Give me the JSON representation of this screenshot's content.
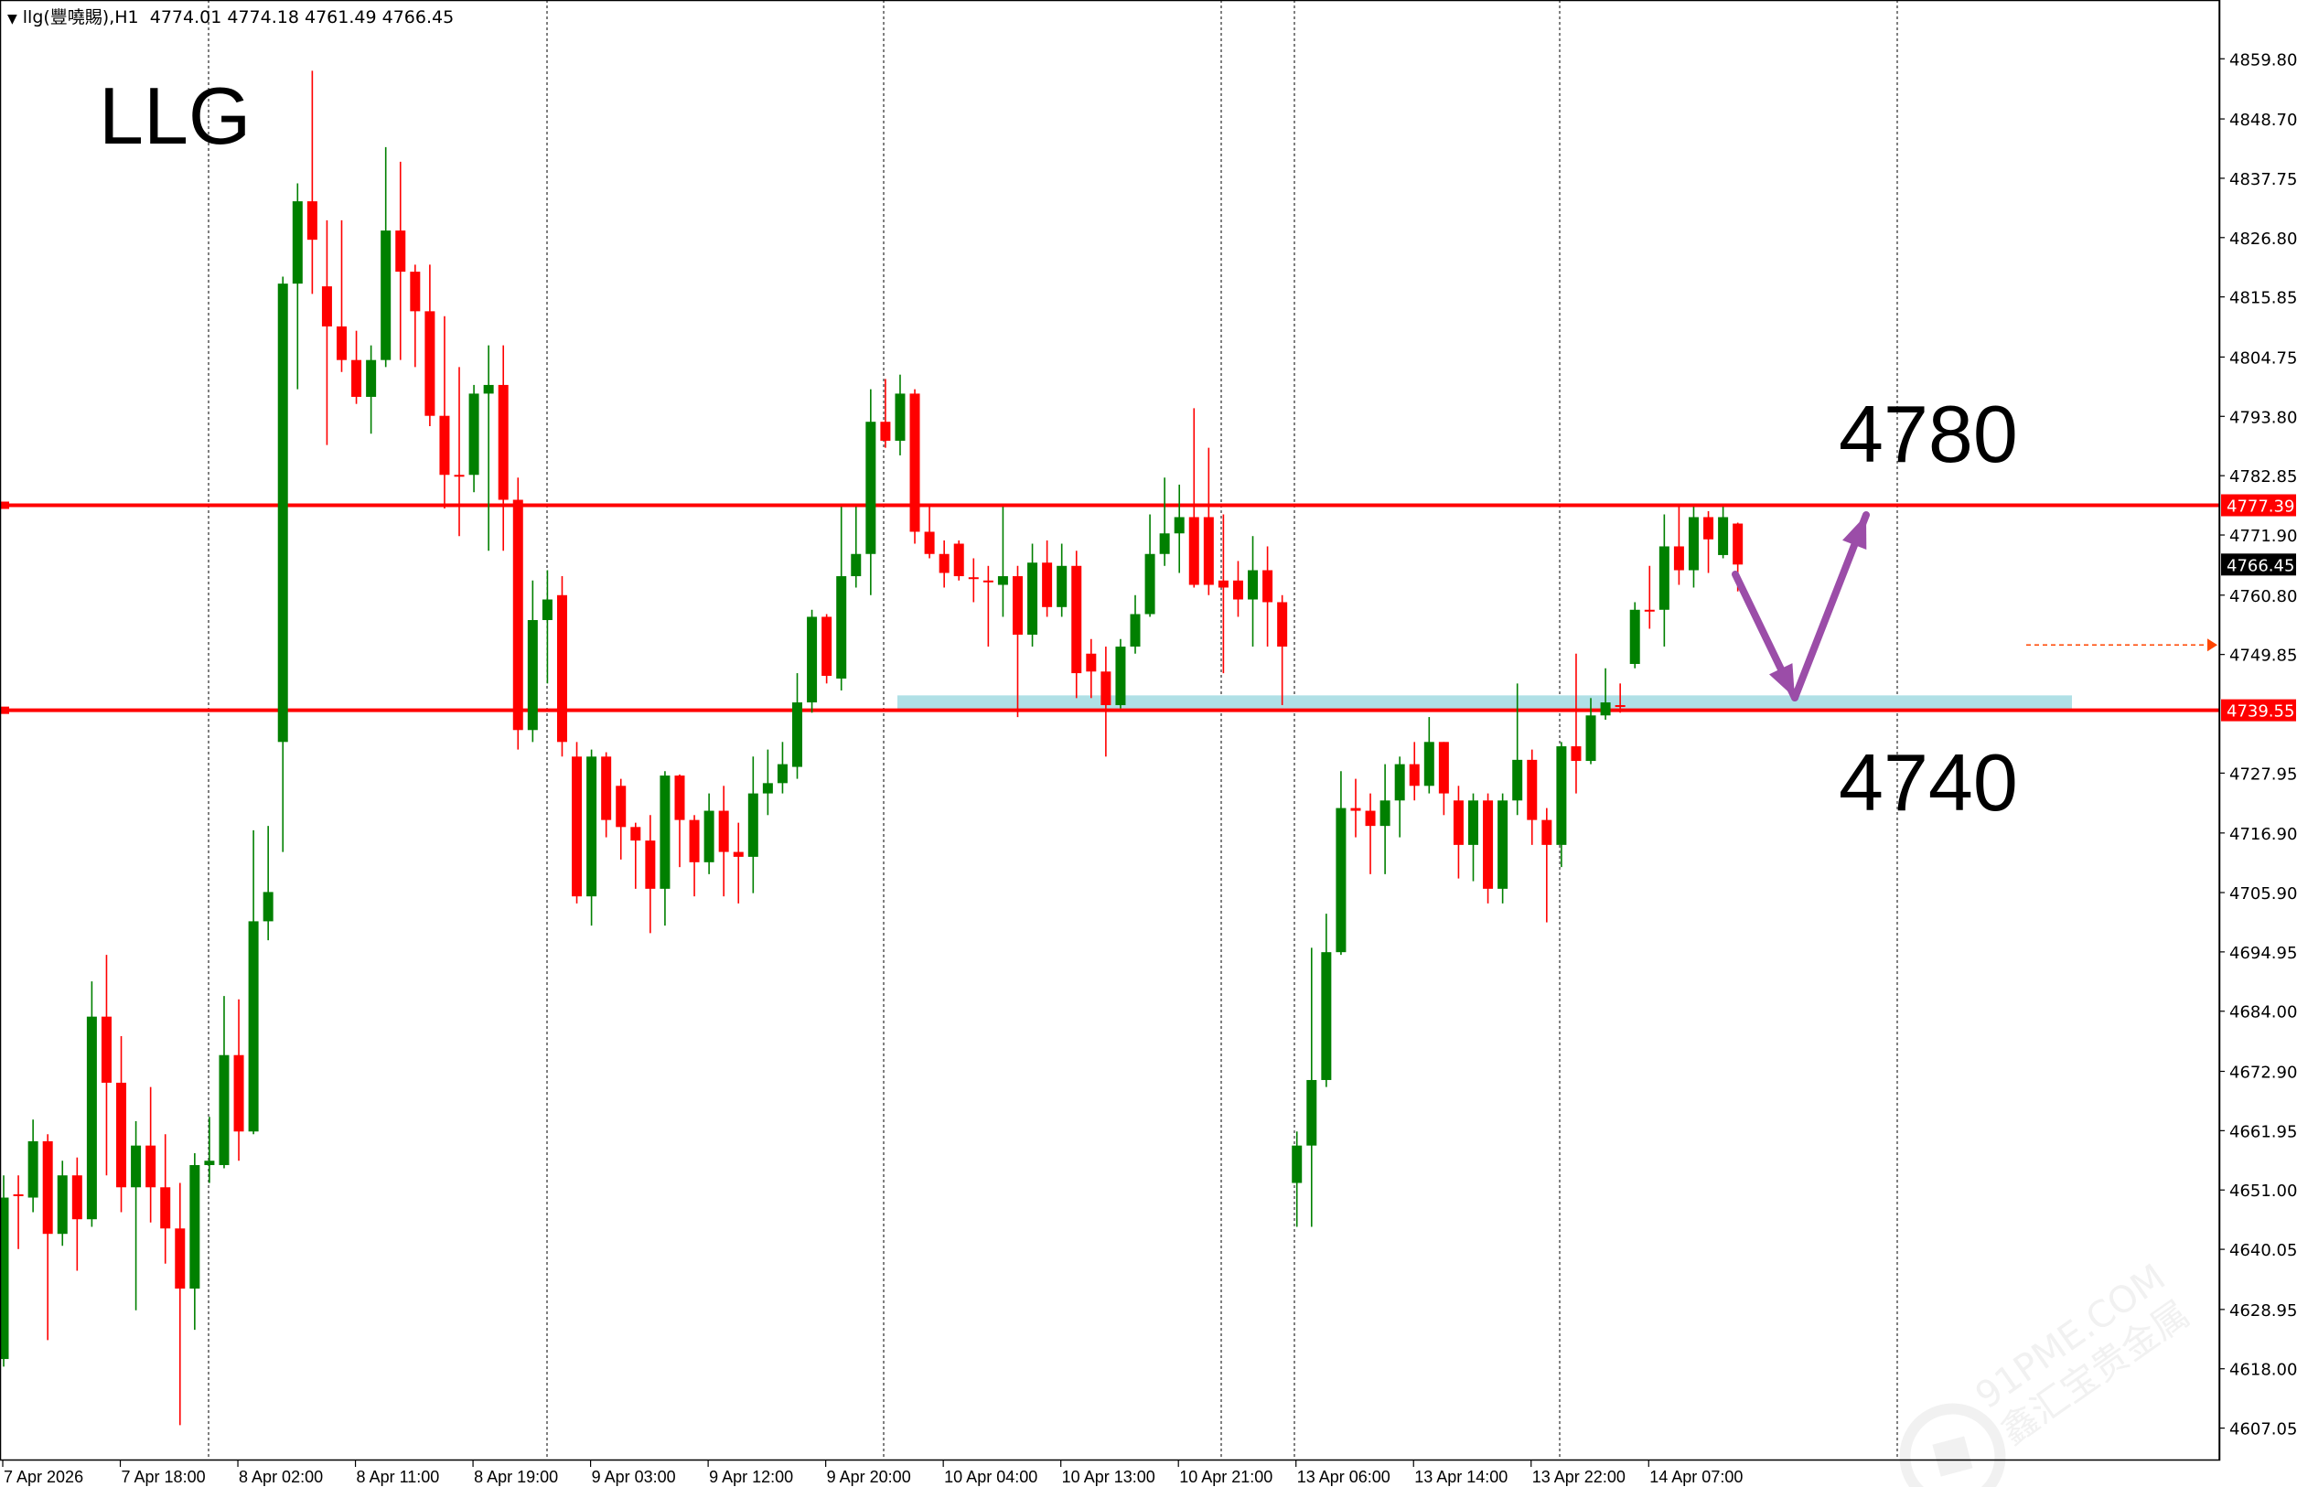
{
  "header": {
    "symbol": "llg(豐嘵賜),H1",
    "open": "4774.01",
    "high": "4774.18",
    "low": "4761.49",
    "close": "4766.45",
    "dropdown_icon": "triangle-down-icon"
  },
  "annotations": {
    "title": "LLG",
    "upper_target": "4780",
    "lower_target": "4740",
    "arrow_color": "#9b4da8",
    "zone_color": "#b0e0e6",
    "support_zone": [
      4739.55,
      4742.3
    ]
  },
  "watermark": "91PME.COM 鑫汇宝贵金属",
  "colors": {
    "bull": "#008000",
    "bear": "#ff0000",
    "level_line": "#ff0000",
    "grid": "#000000"
  },
  "chart_data": {
    "type": "candlestick",
    "timeframe": "H1",
    "ylim": [
      4602,
      4866
    ],
    "grid": "vertical day separators (dotted)",
    "y_ticks": [
      "4859.80",
      "4848.70",
      "4837.75",
      "4826.80",
      "4815.85",
      "4804.75",
      "4793.80",
      "4782.85",
      "4771.90",
      "4760.80",
      "4749.85",
      "4727.95",
      "4716.90",
      "4705.90",
      "4694.95",
      "4684.00",
      "4672.90",
      "4661.95",
      "4651.00",
      "4640.05",
      "4628.95",
      "4618.00",
      "4607.05"
    ],
    "x_labels": [
      "7 Apr 2026",
      "7 Apr 18:00",
      "8 Apr 02:00",
      "8 Apr 11:00",
      "8 Apr 19:00",
      "9 Apr 03:00",
      "9 Apr 12:00",
      "9 Apr 20:00",
      "10 Apr 04:00",
      "10 Apr 13:00",
      "10 Apr 21:00",
      "13 Apr 06:00",
      "13 Apr 14:00",
      "13 Apr 22:00",
      "14 Apr 07:00"
    ],
    "horizontal_levels": [
      {
        "price": "4777.39",
        "color": "#ff0000"
      },
      {
        "price": "4739.55",
        "color": "#ff0000"
      }
    ],
    "current_price": "4766.45",
    "alert_price": 4751.6,
    "ohlc": [
      [
        4619.8,
        4653.7,
        4618.4,
        4649.6
      ],
      [
        4650.2,
        4653.7,
        4640.1,
        4649.9
      ],
      [
        4649.6,
        4664.0,
        4646.9,
        4660.0
      ],
      [
        4660.0,
        4661.3,
        4623.3,
        4642.9
      ],
      [
        4642.9,
        4656.4,
        4640.7,
        4653.7
      ],
      [
        4653.7,
        4657.0,
        4636.1,
        4645.6
      ],
      [
        4645.6,
        4689.5,
        4644.2,
        4683.0
      ],
      [
        4683.0,
        4694.4,
        4653.7,
        4670.8
      ],
      [
        4670.8,
        4679.4,
        4646.9,
        4651.5
      ],
      [
        4651.5,
        4663.7,
        4628.8,
        4659.2
      ],
      [
        4659.2,
        4670.0,
        4645.0,
        4651.5
      ],
      [
        4651.5,
        4661.3,
        4637.4,
        4643.9
      ],
      [
        4643.9,
        4652.3,
        4607.6,
        4632.8
      ],
      [
        4632.8,
        4657.8,
        4625.2,
        4655.6
      ],
      [
        4655.6,
        4664.5,
        4652.3,
        4656.4
      ],
      [
        4655.6,
        4686.8,
        4655.0,
        4675.9
      ],
      [
        4675.9,
        4686.2,
        4656.4,
        4661.8
      ],
      [
        4661.8,
        4717.4,
        4661.3,
        4700.6
      ],
      [
        4700.6,
        4718.2,
        4697.1,
        4706.0
      ],
      [
        4733.7,
        4819.6,
        4713.4,
        4818.3
      ],
      [
        4818.3,
        4836.8,
        4798.8,
        4833.5
      ],
      [
        4833.5,
        4857.6,
        4816.4,
        4826.4
      ],
      [
        4817.8,
        4830.0,
        4788.5,
        4810.4
      ],
      [
        4810.4,
        4830.0,
        4802.0,
        4804.2
      ],
      [
        4804.2,
        4809.6,
        4796.1,
        4797.4
      ],
      [
        4797.4,
        4806.9,
        4790.6,
        4804.2
      ],
      [
        4804.2,
        4843.5,
        4802.9,
        4828.1
      ],
      [
        4828.1,
        4840.8,
        4804.2,
        4820.5
      ],
      [
        4820.5,
        4821.8,
        4802.9,
        4813.2
      ],
      [
        4813.2,
        4821.8,
        4792.0,
        4793.9
      ],
      [
        4793.9,
        4812.3,
        4776.8,
        4783.0
      ],
      [
        4783.0,
        4802.9,
        4771.7,
        4782.8
      ],
      [
        4783.0,
        4799.6,
        4779.8,
        4798.0
      ],
      [
        4798.0,
        4806.9,
        4769.0,
        4799.6
      ],
      [
        4799.6,
        4806.9,
        4769.0,
        4778.4
      ],
      [
        4778.4,
        4782.5,
        4732.3,
        4735.9
      ],
      [
        4735.9,
        4763.5,
        4733.7,
        4756.2
      ],
      [
        4756.2,
        4765.4,
        4744.5,
        4760.0
      ],
      [
        4760.8,
        4764.3,
        4731.0,
        4733.7
      ],
      [
        4731.0,
        4733.7,
        4703.9,
        4705.2
      ],
      [
        4705.2,
        4732.3,
        4699.8,
        4731.0
      ],
      [
        4731.0,
        4731.8,
        4716.1,
        4719.3
      ],
      [
        4725.6,
        4726.9,
        4712.0,
        4718.0
      ],
      [
        4718.0,
        4718.8,
        4706.6,
        4715.5
      ],
      [
        4715.5,
        4720.2,
        4698.4,
        4706.6
      ],
      [
        4706.6,
        4728.3,
        4699.8,
        4727.5
      ],
      [
        4727.5,
        4727.7,
        4710.6,
        4719.3
      ],
      [
        4719.3,
        4720.2,
        4705.2,
        4711.5
      ],
      [
        4711.5,
        4724.2,
        4709.3,
        4721.0
      ],
      [
        4721.0,
        4725.6,
        4705.2,
        4713.4
      ],
      [
        4713.4,
        4718.8,
        4703.9,
        4712.5
      ],
      [
        4712.5,
        4731.0,
        4705.8,
        4724.2
      ],
      [
        4724.2,
        4732.3,
        4720.2,
        4726.1
      ],
      [
        4726.1,
        4733.7,
        4724.2,
        4729.6
      ],
      [
        4729.1,
        4746.4,
        4726.9,
        4741.0
      ],
      [
        4741.0,
        4758.1,
        4739.1,
        4756.8
      ],
      [
        4756.8,
        4757.3,
        4744.5,
        4745.9
      ],
      [
        4745.4,
        4777.1,
        4743.2,
        4764.3
      ],
      [
        4764.3,
        4777.1,
        4762.2,
        4768.4
      ],
      [
        4768.4,
        4798.8,
        4760.8,
        4792.8
      ],
      [
        4792.8,
        4800.7,
        4788.0,
        4789.3
      ],
      [
        4789.3,
        4801.5,
        4786.6,
        4798.0
      ],
      [
        4798.0,
        4798.8,
        4770.3,
        4772.5
      ],
      [
        4772.5,
        4777.1,
        4767.6,
        4768.4
      ],
      [
        4768.4,
        4770.9,
        4762.2,
        4764.9
      ],
      [
        4770.3,
        4770.9,
        4763.5,
        4764.3
      ],
      [
        4764.1,
        4767.6,
        4759.5,
        4763.9
      ],
      [
        4763.5,
        4766.2,
        4751.3,
        4763.3
      ],
      [
        4762.7,
        4777.1,
        4756.8,
        4764.3
      ],
      [
        4764.3,
        4766.2,
        4738.3,
        4753.5
      ],
      [
        4753.5,
        4770.3,
        4751.3,
        4766.8
      ],
      [
        4766.8,
        4770.9,
        4756.8,
        4758.6
      ],
      [
        4758.6,
        4770.3,
        4756.8,
        4766.2
      ],
      [
        4766.2,
        4769.0,
        4741.8,
        4746.4
      ],
      [
        4750.0,
        4752.7,
        4741.8,
        4746.7
      ],
      [
        4746.7,
        4751.3,
        4731.0,
        4740.5
      ],
      [
        4740.5,
        4752.7,
        4739.9,
        4751.3
      ],
      [
        4751.3,
        4760.8,
        4750.0,
        4757.3
      ],
      [
        4757.3,
        4775.7,
        4756.8,
        4768.4
      ],
      [
        4768.4,
        4782.5,
        4766.2,
        4772.2
      ],
      [
        4772.2,
        4781.2,
        4764.9,
        4775.2
      ],
      [
        4775.2,
        4795.3,
        4762.2,
        4762.7
      ],
      [
        4775.2,
        4788.0,
        4760.8,
        4762.7
      ],
      [
        4763.5,
        4775.7,
        4746.4,
        4762.2
      ],
      [
        4763.5,
        4767.1,
        4756.8,
        4760.0
      ],
      [
        4760.0,
        4771.7,
        4751.3,
        4765.4
      ],
      [
        4765.4,
        4769.8,
        4751.3,
        4759.5
      ],
      [
        4759.5,
        4760.8,
        4740.5,
        4751.3
      ],
      [
        4652.3,
        4661.8,
        4644.2,
        4659.2
      ],
      [
        4659.2,
        4695.7,
        4644.2,
        4671.3
      ],
      [
        4671.3,
        4702.0,
        4670.0,
        4694.9
      ],
      [
        4694.9,
        4728.3,
        4694.4,
        4721.5
      ],
      [
        4721.5,
        4726.9,
        4716.1,
        4721.0
      ],
      [
        4721.0,
        4724.2,
        4709.3,
        4718.2
      ],
      [
        4718.2,
        4729.6,
        4709.3,
        4722.9
      ],
      [
        4722.9,
        4731.0,
        4716.1,
        4729.6
      ],
      [
        4729.6,
        4733.7,
        4722.9,
        4725.6
      ],
      [
        4725.6,
        4738.3,
        4724.2,
        4733.7
      ],
      [
        4733.7,
        4733.7,
        4720.2,
        4724.2
      ],
      [
        4722.9,
        4725.6,
        4708.5,
        4714.7
      ],
      [
        4714.7,
        4724.2,
        4708.0,
        4722.9
      ],
      [
        4722.9,
        4724.2,
        4703.9,
        4706.6
      ],
      [
        4706.6,
        4724.2,
        4703.9,
        4722.9
      ],
      [
        4722.9,
        4744.5,
        4720.2,
        4730.4
      ],
      [
        4730.4,
        4732.3,
        4714.7,
        4719.3
      ],
      [
        4719.3,
        4721.5,
        4700.4,
        4714.7
      ],
      [
        4714.7,
        4733.7,
        4710.6,
        4732.9
      ],
      [
        4732.9,
        4750.0,
        4724.2,
        4730.2
      ],
      [
        4730.2,
        4741.8,
        4729.6,
        4738.6
      ],
      [
        4738.6,
        4747.3,
        4737.8,
        4741.0
      ],
      [
        4740.5,
        4744.5,
        4739.1,
        4740.3
      ],
      [
        4748.1,
        4759.5,
        4747.3,
        4758.1
      ],
      [
        4758.1,
        4766.2,
        4754.6,
        4757.9
      ],
      [
        4758.1,
        4775.7,
        4751.3,
        4769.8
      ],
      [
        4769.8,
        4777.1,
        4762.7,
        4765.4
      ],
      [
        4765.4,
        4777.1,
        4762.2,
        4775.2
      ],
      [
        4775.2,
        4776.3,
        4764.9,
        4771.1
      ],
      [
        4768.2,
        4777.1,
        4767.6,
        4775.2
      ],
      [
        4774.01,
        4774.18,
        4761.49,
        4766.45
      ]
    ]
  }
}
